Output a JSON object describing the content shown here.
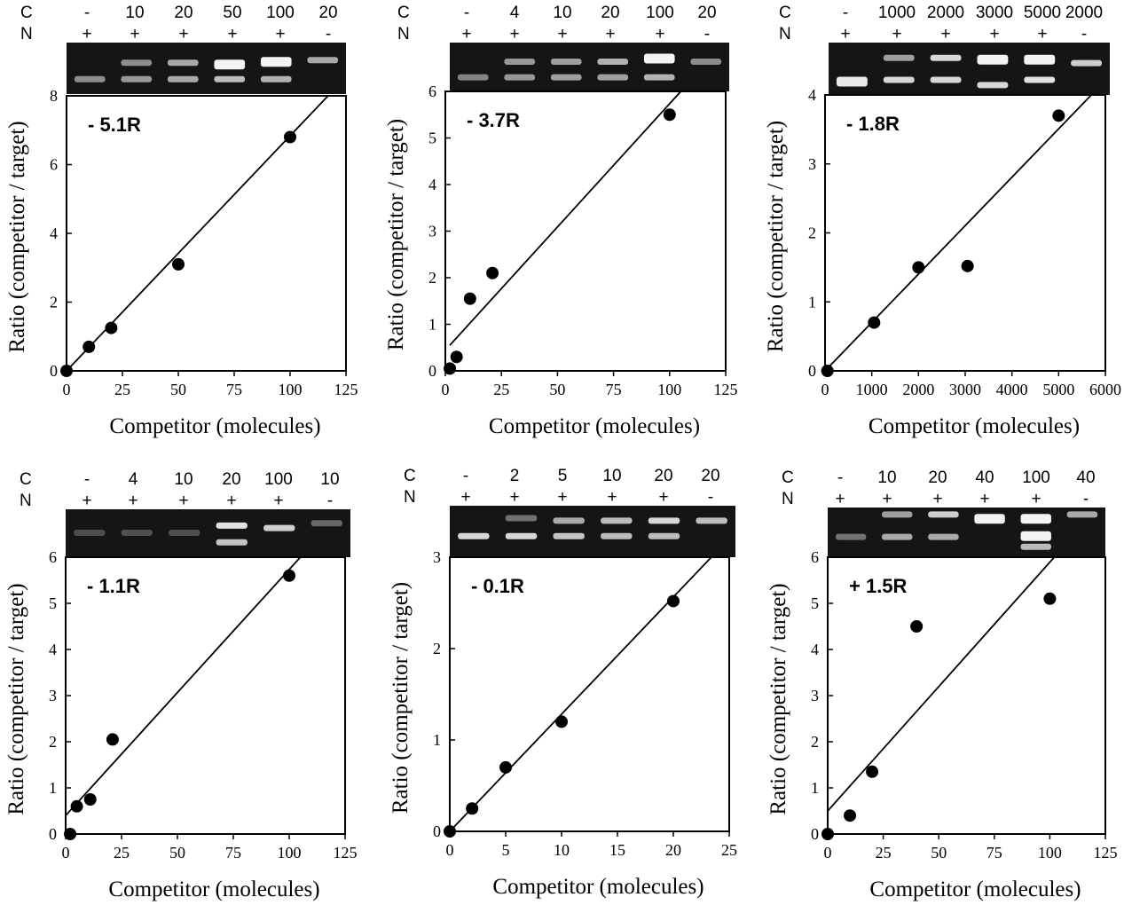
{
  "chart_data": [
    {
      "type": "scatter",
      "annotation": "- 5.1R",
      "xlabel": "Competitor (molecules)",
      "ylabel": "Ratio (competitor / target)",
      "xlim": [
        0,
        125
      ],
      "ylim": [
        0,
        8
      ],
      "xticks": [
        "0",
        "25",
        "50",
        "75",
        "100",
        "125"
      ],
      "yticks": [
        "0",
        "2",
        "4",
        "6",
        "8"
      ],
      "gel": {
        "row_c_label": "C",
        "row_n_label": "N",
        "c": [
          "-",
          "10",
          "20",
          "50",
          "100",
          "20"
        ],
        "n": [
          "+",
          "+",
          "+",
          "+",
          "+",
          "-"
        ]
      },
      "points": [
        [
          0,
          0
        ],
        [
          10,
          0.7
        ],
        [
          20,
          1.25
        ],
        [
          50,
          3.1
        ],
        [
          100,
          6.8
        ]
      ],
      "fit": [
        [
          0,
          0
        ],
        [
          117,
          8.0
        ]
      ]
    },
    {
      "type": "scatter",
      "annotation": "- 3.7R",
      "xlabel": "Competitor (molecules)",
      "ylabel": "Ratio (competitor / target)",
      "xlim": [
        0,
        125
      ],
      "ylim": [
        0,
        6
      ],
      "xticks": [
        "0",
        "25",
        "50",
        "75",
        "100",
        "125"
      ],
      "yticks": [
        "0",
        "1",
        "2",
        "3",
        "4",
        "5",
        "6"
      ],
      "gel": {
        "row_c_label": "C",
        "row_n_label": "N",
        "c": [
          "-",
          "4",
          "10",
          "20",
          "100",
          "20"
        ],
        "n": [
          "+",
          "+",
          "+",
          "+",
          "+",
          "-"
        ]
      },
      "points": [
        [
          2,
          0.05
        ],
        [
          5,
          0.3
        ],
        [
          11,
          1.55
        ],
        [
          21,
          2.1
        ],
        [
          100,
          5.5
        ]
      ],
      "fit": [
        [
          2,
          0.55
        ],
        [
          105,
          6.0
        ]
      ]
    },
    {
      "type": "scatter",
      "annotation": "- 1.8R",
      "xlabel": "Competitor (molecules)",
      "ylabel": "Ratio (competitor / target)",
      "xlim": [
        0,
        6000
      ],
      "ylim": [
        0,
        4
      ],
      "xticks": [
        "0",
        "1000",
        "2000",
        "3000",
        "4000",
        "5000",
        "6000"
      ],
      "yticks": [
        "0",
        "1",
        "2",
        "3",
        "4"
      ],
      "gel": {
        "row_c_label": "C",
        "row_n_label": "N",
        "c": [
          "-",
          "1000",
          "2000",
          "3000",
          "5000",
          "2000"
        ],
        "n": [
          "+",
          "+",
          "+",
          "+",
          "+",
          "-"
        ]
      },
      "points": [
        [
          50,
          0
        ],
        [
          1050,
          0.7
        ],
        [
          2000,
          1.5
        ],
        [
          3050,
          1.52
        ],
        [
          5000,
          3.7
        ]
      ],
      "fit": [
        [
          0,
          0
        ],
        [
          5700,
          4.0
        ]
      ]
    },
    {
      "type": "scatter",
      "annotation": "- 1.1R",
      "xlabel": "Competitor (molecules)",
      "ylabel": "Ratio (competitor / target)",
      "xlim": [
        0,
        125
      ],
      "ylim": [
        0,
        6
      ],
      "xticks": [
        "0",
        "25",
        "50",
        "75",
        "100",
        "125"
      ],
      "yticks": [
        "0",
        "1",
        "2",
        "3",
        "4",
        "5",
        "6"
      ],
      "gel": {
        "row_c_label": "C",
        "row_n_label": "N",
        "c": [
          "-",
          "4",
          "10",
          "20",
          "100",
          "10"
        ],
        "n": [
          "+",
          "+",
          "+",
          "+",
          "+",
          "-"
        ]
      },
      "points": [
        [
          2,
          0
        ],
        [
          5,
          0.6
        ],
        [
          11,
          0.75
        ],
        [
          21,
          2.05
        ],
        [
          100,
          5.6
        ]
      ],
      "fit": [
        [
          0,
          0.4
        ],
        [
          105,
          6.0
        ]
      ]
    },
    {
      "type": "scatter",
      "annotation": "- 0.1R",
      "xlabel": "Competitor (molecules)",
      "ylabel": "Ratio (competitor / target)",
      "xlim": [
        0,
        25
      ],
      "ylim": [
        0,
        3
      ],
      "xticks": [
        "0",
        "5",
        "10",
        "15",
        "20",
        "25"
      ],
      "yticks": [
        "0",
        "1",
        "2",
        "3"
      ],
      "gel": {
        "row_c_label": "C",
        "row_n_label": "N",
        "c": [
          "-",
          "2",
          "5",
          "10",
          "20",
          "20"
        ],
        "n": [
          "+",
          "+",
          "+",
          "+",
          "+",
          "-"
        ]
      },
      "points": [
        [
          0,
          0
        ],
        [
          2,
          0.25
        ],
        [
          5,
          0.7
        ],
        [
          10,
          1.2
        ],
        [
          20,
          2.52
        ]
      ],
      "fit": [
        [
          0,
          0
        ],
        [
          23.4,
          3.0
        ]
      ]
    },
    {
      "type": "scatter",
      "annotation": "+ 1.5R",
      "xlabel": "Competitor (molecules)",
      "ylabel": "Ratio (competitor / target)",
      "xlim": [
        0,
        125
      ],
      "ylim": [
        0,
        6
      ],
      "xticks": [
        "0",
        "25",
        "50",
        "75",
        "100",
        "125"
      ],
      "yticks": [
        "0",
        "1",
        "2",
        "3",
        "4",
        "5",
        "6"
      ],
      "gel": {
        "row_c_label": "C",
        "row_n_label": "N",
        "c": [
          "-",
          "10",
          "20",
          "40",
          "100",
          "40"
        ],
        "n": [
          "+",
          "+",
          "+",
          "+",
          "+",
          "-"
        ]
      },
      "points": [
        [
          0,
          0
        ],
        [
          10,
          0.4
        ],
        [
          20,
          1.35
        ],
        [
          40,
          4.5
        ],
        [
          100,
          5.1
        ]
      ],
      "fit": [
        [
          0,
          0.5
        ],
        [
          102,
          6.0
        ]
      ]
    }
  ]
}
